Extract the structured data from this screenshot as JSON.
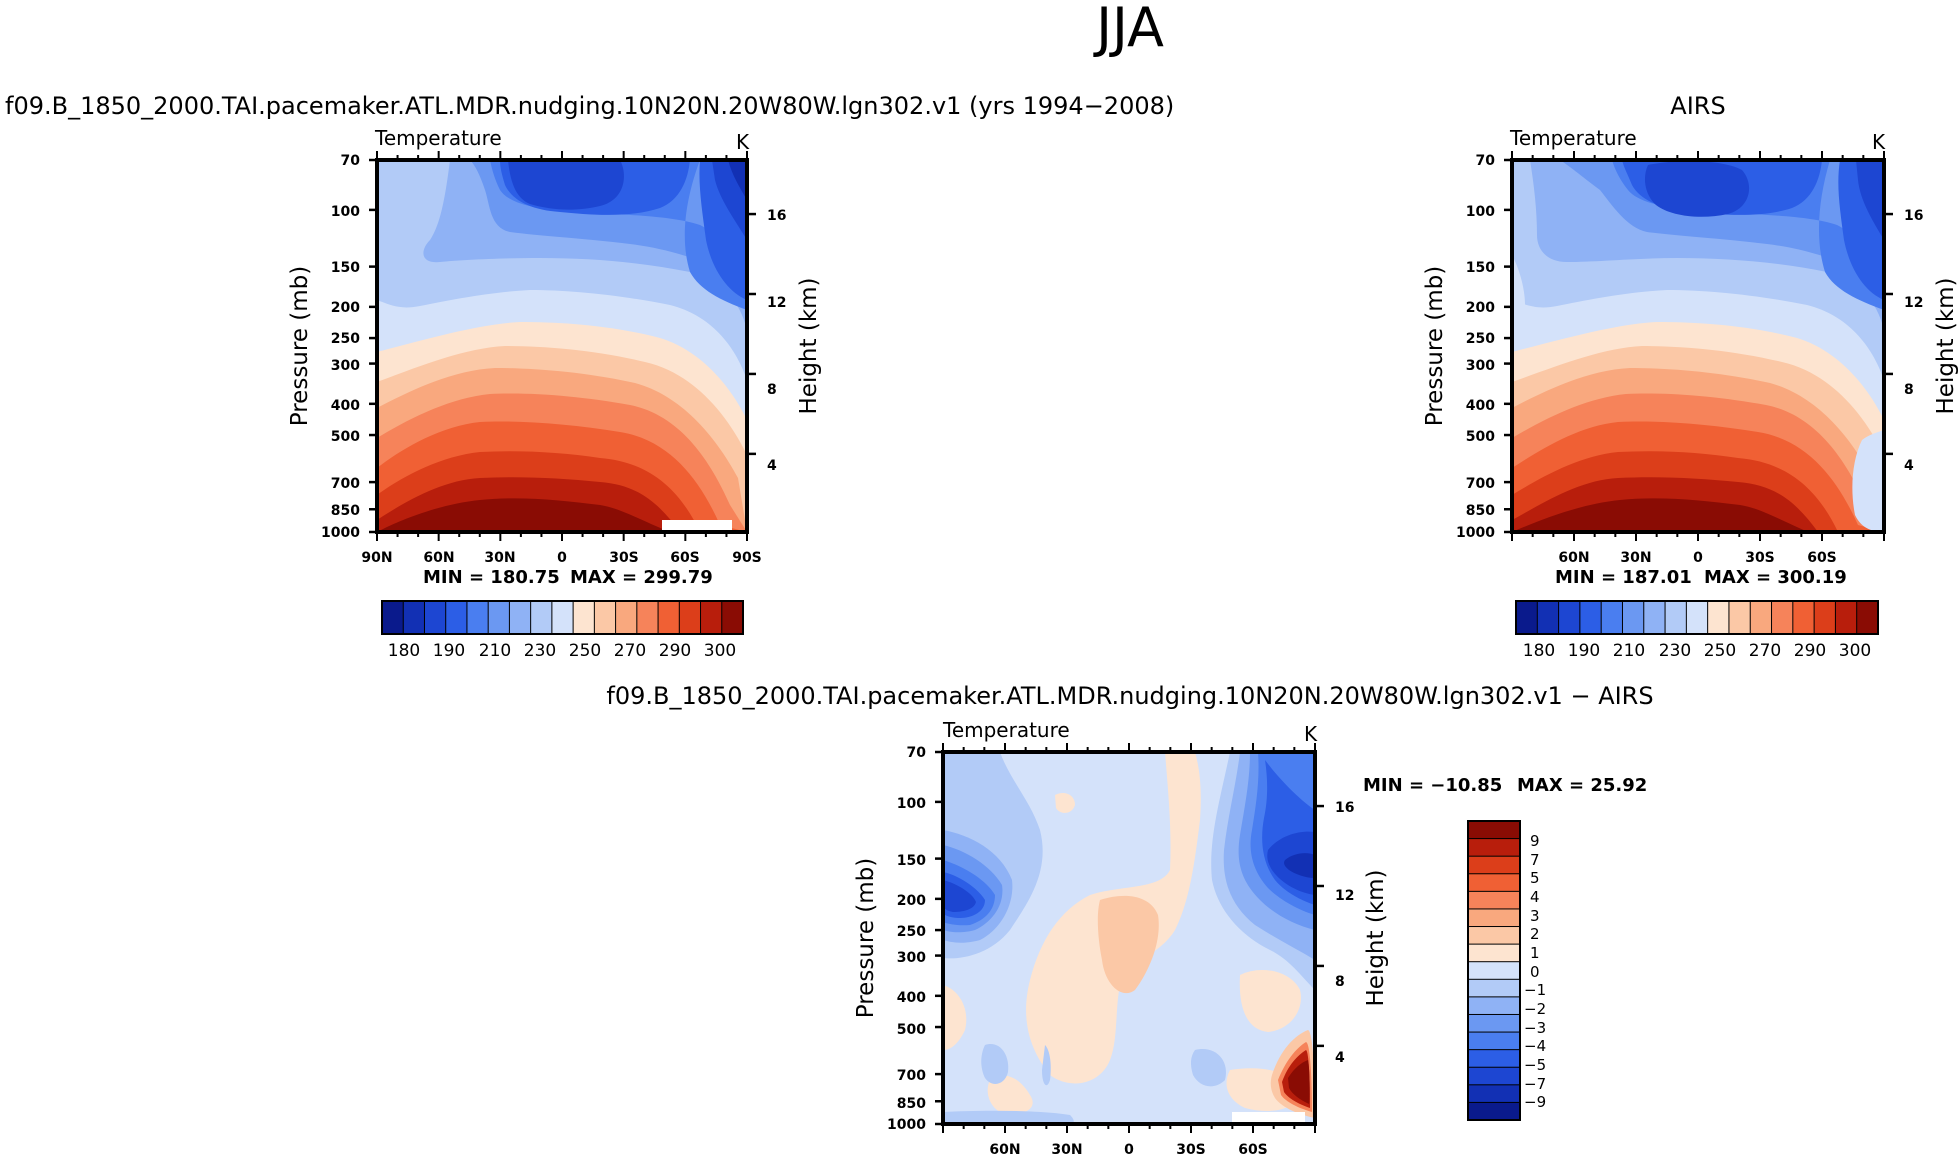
{
  "figure_title": "JJA",
  "colors": {
    "temp_scale": [
      "#0a1a8c",
      "#1230b4",
      "#1d46d2",
      "#2c5ee6",
      "#4a7ef0",
      "#6b98f2",
      "#8fb2f5",
      "#b2cbf7",
      "#d4e2fa",
      "#fde4d0",
      "#fbc8a6",
      "#f9a87e",
      "#f6835a",
      "#f06034",
      "#dc3e1a",
      "#b81e0c",
      "#8a0c04"
    ],
    "diff_scale": [
      "#0a1a8c",
      "#1230b4",
      "#1d46d2",
      "#2c5ee6",
      "#4a7ef0",
      "#6b98f2",
      "#8fb2f5",
      "#b2cbf7",
      "#d4e2fa",
      "#fde4d0",
      "#fbc8a6",
      "#f9a87e",
      "#f6835a",
      "#f06034",
      "#dc3e1a",
      "#b81e0c",
      "#8a0c04"
    ]
  },
  "chart_data": [
    {
      "type": "heatmap",
      "panel": "model",
      "title": "f09.B_1850_2000.TAI.pacemaker.ATL.MDR.nudging.10N20N.20W80W.lgn302.v1 (yrs 1994−2008)",
      "variable": "Temperature",
      "units": "K",
      "xlabel": "",
      "x_ticks": [
        "90N",
        "60N",
        "30N",
        "0",
        "30S",
        "60S",
        "90S"
      ],
      "x_range": [
        90,
        -90
      ],
      "ylabel": "Pressure (mb)",
      "y_ticks": [
        70,
        100,
        150,
        200,
        250,
        300,
        400,
        500,
        700,
        850,
        1000
      ],
      "y_range": [
        70,
        1000
      ],
      "y2label": "Height (km)",
      "y2_ticks": [
        16,
        12,
        8,
        4
      ],
      "min_label": "MIN = 180.75",
      "max_label": "MAX = 299.79",
      "min": 180.75,
      "max": 299.79,
      "colorbar_labels": [
        "180",
        "190",
        "210",
        "230",
        "250",
        "270",
        "290",
        "300"
      ]
    },
    {
      "type": "heatmap",
      "panel": "obs",
      "title": "AIRS",
      "variable": "Temperature",
      "units": "K",
      "xlabel": "",
      "x_ticks": [
        "60N",
        "30N",
        "0",
        "30S",
        "60S"
      ],
      "x_range": [
        90,
        -90
      ],
      "ylabel": "Pressure (mb)",
      "y_ticks": [
        70,
        100,
        150,
        200,
        250,
        300,
        400,
        500,
        700,
        850,
        1000
      ],
      "y_range": [
        70,
        1000
      ],
      "y2label": "Height (km)",
      "y2_ticks": [
        16,
        12,
        8,
        4
      ],
      "min_label": "MIN = 187.01",
      "max_label": "MAX = 300.19",
      "min": 187.01,
      "max": 300.19,
      "colorbar_labels": [
        "180",
        "190",
        "210",
        "230",
        "250",
        "270",
        "290",
        "300"
      ]
    },
    {
      "type": "heatmap",
      "panel": "difference",
      "title": "f09.B_1850_2000.TAI.pacemaker.ATL.MDR.nudging.10N20N.20W80W.lgn302.v1 − AIRS",
      "variable": "Temperature",
      "units": "K",
      "xlabel": "",
      "x_ticks": [
        "60N",
        "30N",
        "0",
        "30S",
        "60S"
      ],
      "x_range": [
        90,
        -90
      ],
      "ylabel": "Pressure (mb)",
      "y_ticks": [
        70,
        100,
        150,
        200,
        250,
        300,
        400,
        500,
        700,
        850,
        1000
      ],
      "y_range": [
        70,
        1000
      ],
      "y2label": "Height (km)",
      "y2_ticks": [
        16,
        12,
        8,
        4
      ],
      "min_label": "MIN = −10.85",
      "max_label": "MAX =  25.92",
      "min": -10.85,
      "max": 25.92,
      "colorbar_labels": [
        "9",
        "7",
        "5",
        "4",
        "3",
        "2",
        "1",
        "0",
        "−1",
        "−2",
        "−3",
        "−4",
        "−5",
        "−7",
        "−9"
      ]
    }
  ]
}
